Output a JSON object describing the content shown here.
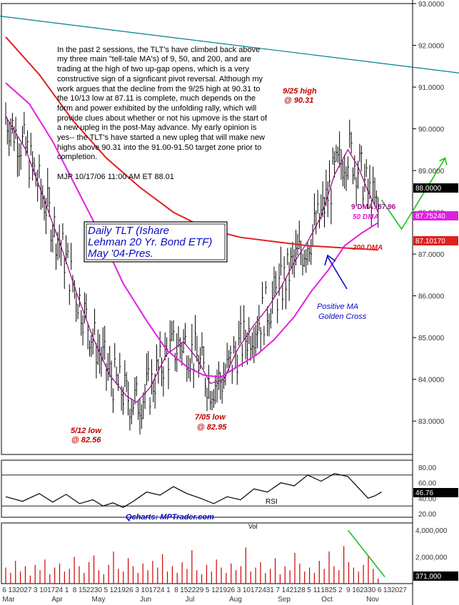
{
  "commentary": "In the past 2 sessions, the TLT's have climbed back above my three main \"tell-tale MA's) of 9, 50, and 200, and are trading at the high of two up-gap opens, which is a very constructive sign of a signficant pivot reversal. Although my work argues that the decline from the 9/25 high at 90.31 to the 10/13 low at 87.11 is complete, much depends on the form and power exhibited by the unfolding rally, which will provide clues about whether or not his upmove is the start of a new upleg in the post-May advance. My early opinion is yes-- the TLT's have started a new upleg that will make new highs above 90.31 into the 91.00-91.50 target zone prior to completion.",
  "signature": "MJP  10/17/06  11:00 AM ET  88.01",
  "title_box": [
    "Daily TLT (Ishare",
    "Lehman 20 Yr. Bond ETF)",
    "May '04-Pres."
  ],
  "annotations": {
    "high": [
      "9/25 high",
      "@ 90.31"
    ],
    "low1": [
      "5/12 low",
      "@ 82.56"
    ],
    "low2": [
      "7/05 low",
      "@ 82.95"
    ],
    "dma9": "9 DMA: 87.96",
    "dma50": "50 DMA",
    "dma200": "200 DMA",
    "golden": [
      "Positive MA",
      "Golden Cross"
    ],
    "rsi": "RSI",
    "vol": "Vol",
    "credit": "Qcharts: MPTrader.com"
  },
  "price_tags": [
    {
      "text": "88.0000",
      "color": "#000000"
    },
    {
      "text": "87.75240",
      "color": "#e020e0"
    },
    {
      "text": "87.10170",
      "color": "#e02020"
    }
  ],
  "rsi_tag": "46.76",
  "vol_tag": "371,000",
  "colors": {
    "price": "#000000",
    "dma9": "#a01090",
    "dma50": "#e020e0",
    "dma200": "#e02020",
    "trend": "#008080",
    "projection": "#20c020",
    "arrow": "#0a0ac0",
    "volume": "#cc0000"
  },
  "chart_data": [
    {
      "type": "line",
      "panel": "price",
      "y_ticks": [
        "93.0000",
        "92.0000",
        "91.0000",
        "90.0000",
        "89.0000",
        "88.0000",
        "87.0000",
        "86.0000",
        "85.0000",
        "84.0000",
        "83.0000"
      ],
      "ylim": [
        82.2,
        93.0
      ],
      "x_ticks": [
        "6",
        "13",
        "20",
        "27",
        "3",
        "10",
        "17",
        "24",
        "1",
        "8",
        "15",
        "22",
        "30",
        "5",
        "12",
        "19",
        "26",
        "3",
        "10",
        "17",
        "24",
        "1",
        "8",
        "15",
        "22",
        "29",
        "5",
        "12",
        "19",
        "26",
        "3",
        "10",
        "17",
        "24",
        "31",
        "7",
        "14",
        "21",
        "28",
        "5",
        "11",
        "18",
        "25",
        "2",
        "9",
        "16",
        "23",
        "30",
        "6",
        "13",
        "20",
        "27"
      ],
      "month_labels": [
        "Mar",
        "Apr",
        "May",
        "Jun",
        "Jul",
        "Aug",
        "Sep",
        "Oct",
        "Nov"
      ],
      "series": [
        {
          "name": "9 DMA",
          "values": [
            [
              0,
              90.3
            ],
            [
              12,
              89.5
            ],
            [
              22,
              88.4
            ],
            [
              32,
              87.3
            ],
            [
              42,
              86.1
            ],
            [
              52,
              85.0
            ],
            [
              62,
              84.1
            ],
            [
              72,
              83.6
            ],
            [
              78,
              83.45
            ],
            [
              86,
              83.8
            ],
            [
              96,
              84.6
            ],
            [
              106,
              84.9
            ],
            [
              114,
              84.5
            ],
            [
              122,
              83.9
            ],
            [
              130,
              84.0
            ],
            [
              138,
              84.7
            ],
            [
              148,
              85.3
            ],
            [
              156,
              85.7
            ],
            [
              164,
              86.2
            ],
            [
              172,
              86.8
            ],
            [
              180,
              87.3
            ],
            [
              188,
              87.9
            ],
            [
              196,
              88.9
            ],
            [
              204,
              89.5
            ],
            [
              210,
              89.1
            ],
            [
              216,
              88.5
            ],
            [
              222,
              88.0
            ]
          ]
        },
        {
          "name": "50 DMA",
          "values": [
            [
              0,
              91.1
            ],
            [
              14,
              90.6
            ],
            [
              28,
              89.7
            ],
            [
              42,
              88.6
            ],
            [
              56,
              87.5
            ],
            [
              70,
              86.3
            ],
            [
              84,
              85.4
            ],
            [
              96,
              84.7
            ],
            [
              108,
              84.3
            ],
            [
              118,
              84.1
            ],
            [
              128,
              84.05
            ],
            [
              138,
              84.3
            ],
            [
              150,
              84.6
            ],
            [
              160,
              84.95
            ],
            [
              172,
              85.5
            ],
            [
              182,
              86.1
            ],
            [
              192,
              86.6
            ],
            [
              202,
              87.2
            ],
            [
              212,
              87.5
            ],
            [
              222,
              87.75
            ]
          ]
        },
        {
          "name": "200 DMA",
          "values": [
            [
              0,
              92.2
            ],
            [
              20,
              91.3
            ],
            [
              40,
              90.2
            ],
            [
              60,
              89.3
            ],
            [
              80,
              88.6
            ],
            [
              100,
              88.0
            ],
            [
              120,
              87.6
            ],
            [
              140,
              87.4
            ],
            [
              160,
              87.3
            ],
            [
              180,
              87.2
            ],
            [
              200,
              87.15
            ],
            [
              222,
              87.1
            ]
          ]
        }
      ],
      "trendline": [
        [
          -44,
          92.9
        ],
        [
          278,
          91.3
        ]
      ],
      "projection": [
        [
          224,
          88.3
        ],
        [
          236,
          87.6
        ],
        [
          262,
          89.3
        ]
      ],
      "last_price": 88.0
    },
    {
      "type": "line",
      "panel": "rsi",
      "name": "RSI",
      "y_ticks": [
        "80.00",
        "60.00",
        "40.00",
        "20.00"
      ],
      "ylim": [
        20,
        80
      ],
      "levels": [
        70,
        30
      ],
      "values": [
        [
          0,
          42
        ],
        [
          10,
          36
        ],
        [
          20,
          46
        ],
        [
          28,
          35
        ],
        [
          36,
          45
        ],
        [
          44,
          33
        ],
        [
          52,
          38
        ],
        [
          58,
          30
        ],
        [
          64,
          34
        ],
        [
          70,
          28
        ],
        [
          76,
          36
        ],
        [
          84,
          48
        ],
        [
          92,
          44
        ],
        [
          100,
          55
        ],
        [
          108,
          46
        ],
        [
          116,
          40
        ],
        [
          124,
          33
        ],
        [
          132,
          42
        ],
        [
          140,
          38
        ],
        [
          148,
          52
        ],
        [
          156,
          48
        ],
        [
          164,
          60
        ],
        [
          172,
          56
        ],
        [
          180,
          70
        ],
        [
          188,
          62
        ],
        [
          196,
          72
        ],
        [
          204,
          68
        ],
        [
          210,
          54
        ],
        [
          216,
          40
        ],
        [
          220,
          43
        ],
        [
          224,
          48
        ]
      ],
      "last": 46.76
    },
    {
      "type": "bar",
      "panel": "volume",
      "name": "Vol",
      "y_ticks": [
        "4,000,000",
        "2,000,000"
      ],
      "ylim": [
        0,
        4000000
      ],
      "values": [
        1200000,
        800000,
        1700000,
        900000,
        1300000,
        600000,
        1400000,
        1000000,
        1800000,
        700000,
        1200000,
        1500000,
        900000,
        1100000,
        2000000,
        1300000,
        800000,
        1600000,
        2100000,
        1000000,
        700000,
        1400000,
        2400000,
        1100000,
        900000,
        1900000,
        1300000,
        800000,
        1500000,
        1000000,
        1700000,
        1200000,
        2200000,
        900000,
        1300000,
        800000,
        1600000,
        1100000,
        2500000,
        1000000,
        700000,
        1400000,
        900000,
        1800000,
        1200000,
        800000,
        1500000,
        1000000,
        1300000,
        2700000,
        900000,
        1200000,
        1600000,
        800000,
        1100000,
        1900000,
        700000,
        1300000,
        1000000,
        2300000,
        1500000,
        900000,
        1200000,
        800000,
        1700000,
        1100000,
        2400000,
        1300000,
        1000000,
        2800000,
        1600000,
        1200000,
        900000,
        1400000,
        2100000,
        1100000,
        371000
      ],
      "trend": [
        [
          204,
          4000000
        ],
        [
          226,
          500000
        ]
      ],
      "last": 371000
    }
  ]
}
